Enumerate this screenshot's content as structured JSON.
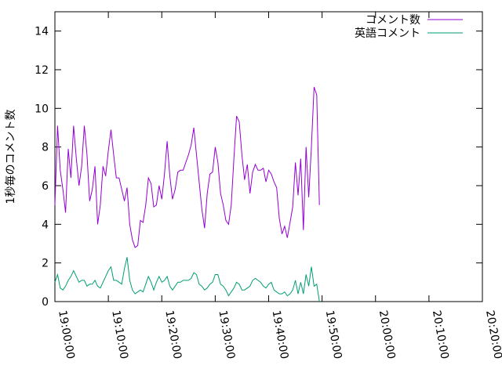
{
  "chart_data": {
    "type": "line",
    "title": "",
    "xlabel": "",
    "ylabel": "1秒毎のコメント数",
    "xlim": [
      "19:00:00",
      "20:20:00"
    ],
    "ylim": [
      0,
      15
    ],
    "x_ticks": [
      "19:00:00",
      "19:10:00",
      "19:20:00",
      "19:30:00",
      "19:40:00",
      "19:50:00",
      "20:00:00",
      "20:10:00",
      "20:20:00"
    ],
    "y_ticks": [
      "0",
      "2",
      "4",
      "6",
      "8",
      "10",
      "12",
      "14"
    ],
    "grid": false,
    "legend_position": "top-right",
    "series": [
      {
        "name": "コメント数",
        "color": "#9400d3",
        "points": [
          [
            "19:00:00",
            5.0
          ],
          [
            "19:00:30",
            9.1
          ],
          [
            "19:01:00",
            6.8
          ],
          [
            "19:01:30",
            5.8
          ],
          [
            "19:02:00",
            4.6
          ],
          [
            "19:02:30",
            7.9
          ],
          [
            "19:03:00",
            6.4
          ],
          [
            "19:03:30",
            9.1
          ],
          [
            "19:04:00",
            7.4
          ],
          [
            "19:04:30",
            6.0
          ],
          [
            "19:05:00",
            7.0
          ],
          [
            "19:05:30",
            9.1
          ],
          [
            "19:06:00",
            7.6
          ],
          [
            "19:06:30",
            5.2
          ],
          [
            "19:07:00",
            5.8
          ],
          [
            "19:07:30",
            7.0
          ],
          [
            "19:08:00",
            4.0
          ],
          [
            "19:08:30",
            5.0
          ],
          [
            "19:09:00",
            7.0
          ],
          [
            "19:09:30",
            6.5
          ],
          [
            "19:10:00",
            7.8
          ],
          [
            "19:10:30",
            8.9
          ],
          [
            "19:11:00",
            7.6
          ],
          [
            "19:11:30",
            6.4
          ],
          [
            "19:12:00",
            6.4
          ],
          [
            "19:12:30",
            5.8
          ],
          [
            "19:13:00",
            5.2
          ],
          [
            "19:13:30",
            5.9
          ],
          [
            "19:14:00",
            4.0
          ],
          [
            "19:14:30",
            3.2
          ],
          [
            "19:15:00",
            2.8
          ],
          [
            "19:15:30",
            2.9
          ],
          [
            "19:16:00",
            4.2
          ],
          [
            "19:16:30",
            4.1
          ],
          [
            "19:17:00",
            5.0
          ],
          [
            "19:17:30",
            6.4
          ],
          [
            "19:18:00",
            6.1
          ],
          [
            "19:18:30",
            4.9
          ],
          [
            "19:19:00",
            5.0
          ],
          [
            "19:19:30",
            6.0
          ],
          [
            "19:20:00",
            5.3
          ],
          [
            "19:20:30",
            6.6
          ],
          [
            "19:21:00",
            8.3
          ],
          [
            "19:21:30",
            6.5
          ],
          [
            "19:22:00",
            5.3
          ],
          [
            "19:22:30",
            5.8
          ],
          [
            "19:23:00",
            6.7
          ],
          [
            "19:23:30",
            6.8
          ],
          [
            "19:24:00",
            6.8
          ],
          [
            "19:24:30",
            7.2
          ],
          [
            "19:25:00",
            7.6
          ],
          [
            "19:25:30",
            8.1
          ],
          [
            "19:26:00",
            9.0
          ],
          [
            "19:26:30",
            7.6
          ],
          [
            "19:27:00",
            6.2
          ],
          [
            "19:27:30",
            4.8
          ],
          [
            "19:28:00",
            3.8
          ],
          [
            "19:28:30",
            5.6
          ],
          [
            "19:29:00",
            6.6
          ],
          [
            "19:29:30",
            6.7
          ],
          [
            "19:30:00",
            8.0
          ],
          [
            "19:30:30",
            7.2
          ],
          [
            "19:31:00",
            5.6
          ],
          [
            "19:31:30",
            5.0
          ],
          [
            "19:32:00",
            4.2
          ],
          [
            "19:32:30",
            4.0
          ],
          [
            "19:33:00",
            5.0
          ],
          [
            "19:33:30",
            7.4
          ],
          [
            "19:34:00",
            9.6
          ],
          [
            "19:34:30",
            9.3
          ],
          [
            "19:35:00",
            7.6
          ],
          [
            "19:35:30",
            6.3
          ],
          [
            "19:36:00",
            7.1
          ],
          [
            "19:36:30",
            5.6
          ],
          [
            "19:37:00",
            6.7
          ],
          [
            "19:37:30",
            7.1
          ],
          [
            "19:38:00",
            6.8
          ],
          [
            "19:38:30",
            6.8
          ],
          [
            "19:39:00",
            6.9
          ],
          [
            "19:39:30",
            6.2
          ],
          [
            "19:40:00",
            6.8
          ],
          [
            "19:40:30",
            6.6
          ],
          [
            "19:41:00",
            6.2
          ],
          [
            "19:41:30",
            5.9
          ],
          [
            "19:42:00",
            4.3
          ],
          [
            "19:42:30",
            3.5
          ],
          [
            "19:43:00",
            3.9
          ],
          [
            "19:43:30",
            3.3
          ],
          [
            "19:44:00",
            4.1
          ],
          [
            "19:44:30",
            4.9
          ],
          [
            "19:45:00",
            7.2
          ],
          [
            "19:45:30",
            5.5
          ],
          [
            "19:46:00",
            7.4
          ],
          [
            "19:46:30",
            3.7
          ],
          [
            "19:47:00",
            8.0
          ],
          [
            "19:47:30",
            5.4
          ],
          [
            "19:48:00",
            8.0
          ],
          [
            "19:48:30",
            11.1
          ],
          [
            "19:49:00",
            10.7
          ],
          [
            "19:49:30",
            5.0
          ]
        ]
      },
      {
        "name": "英語コメント",
        "color": "#009e73",
        "points": [
          [
            "19:00:00",
            1.0
          ],
          [
            "19:00:30",
            1.4
          ],
          [
            "19:01:00",
            0.7
          ],
          [
            "19:01:30",
            0.6
          ],
          [
            "19:02:00",
            0.8
          ],
          [
            "19:02:30",
            1.1
          ],
          [
            "19:03:00",
            1.3
          ],
          [
            "19:03:30",
            1.6
          ],
          [
            "19:04:00",
            1.3
          ],
          [
            "19:04:30",
            1.0
          ],
          [
            "19:05:00",
            1.1
          ],
          [
            "19:05:30",
            1.1
          ],
          [
            "19:06:00",
            0.8
          ],
          [
            "19:06:30",
            0.9
          ],
          [
            "19:07:00",
            0.9
          ],
          [
            "19:07:30",
            1.1
          ],
          [
            "19:08:00",
            0.8
          ],
          [
            "19:08:30",
            0.7
          ],
          [
            "19:09:00",
            1.0
          ],
          [
            "19:09:30",
            1.3
          ],
          [
            "19:10:00",
            1.6
          ],
          [
            "19:10:30",
            1.8
          ],
          [
            "19:11:00",
            1.1
          ],
          [
            "19:11:30",
            1.1
          ],
          [
            "19:12:00",
            1.0
          ],
          [
            "19:12:30",
            0.9
          ],
          [
            "19:13:00",
            1.7
          ],
          [
            "19:13:30",
            2.3
          ],
          [
            "19:14:00",
            1.1
          ],
          [
            "19:14:30",
            0.6
          ],
          [
            "19:15:00",
            0.4
          ],
          [
            "19:15:30",
            0.5
          ],
          [
            "19:16:00",
            0.6
          ],
          [
            "19:16:30",
            0.5
          ],
          [
            "19:17:00",
            0.9
          ],
          [
            "19:17:30",
            1.3
          ],
          [
            "19:18:00",
            1.0
          ],
          [
            "19:18:30",
            0.6
          ],
          [
            "19:19:00",
            1.0
          ],
          [
            "19:19:30",
            1.3
          ],
          [
            "19:20:00",
            1.0
          ],
          [
            "19:20:30",
            1.1
          ],
          [
            "19:21:00",
            1.3
          ],
          [
            "19:21:30",
            0.8
          ],
          [
            "19:22:00",
            0.6
          ],
          [
            "19:22:30",
            0.8
          ],
          [
            "19:23:00",
            1.0
          ],
          [
            "19:23:30",
            1.0
          ],
          [
            "19:24:00",
            1.1
          ],
          [
            "19:24:30",
            1.1
          ],
          [
            "19:25:00",
            1.1
          ],
          [
            "19:25:30",
            1.2
          ],
          [
            "19:26:00",
            1.5
          ],
          [
            "19:26:30",
            1.4
          ],
          [
            "19:27:00",
            0.9
          ],
          [
            "19:27:30",
            0.8
          ],
          [
            "19:28:00",
            0.6
          ],
          [
            "19:28:30",
            0.7
          ],
          [
            "19:29:00",
            0.9
          ],
          [
            "19:29:30",
            1.0
          ],
          [
            "19:30:00",
            1.4
          ],
          [
            "19:30:30",
            1.4
          ],
          [
            "19:31:00",
            0.9
          ],
          [
            "19:31:30",
            0.8
          ],
          [
            "19:32:00",
            0.6
          ],
          [
            "19:32:30",
            0.3
          ],
          [
            "19:33:00",
            0.5
          ],
          [
            "19:33:30",
            0.7
          ],
          [
            "19:34:00",
            1.0
          ],
          [
            "19:34:30",
            0.9
          ],
          [
            "19:35:00",
            0.6
          ],
          [
            "19:35:30",
            0.6
          ],
          [
            "19:36:00",
            0.7
          ],
          [
            "19:36:30",
            0.8
          ],
          [
            "19:37:00",
            1.1
          ],
          [
            "19:37:30",
            1.2
          ],
          [
            "19:38:00",
            1.1
          ],
          [
            "19:38:30",
            1.0
          ],
          [
            "19:39:00",
            0.8
          ],
          [
            "19:39:30",
            0.7
          ],
          [
            "19:40:00",
            0.9
          ],
          [
            "19:40:30",
            1.0
          ],
          [
            "19:41:00",
            0.6
          ],
          [
            "19:41:30",
            0.5
          ],
          [
            "19:42:00",
            0.4
          ],
          [
            "19:42:30",
            0.4
          ],
          [
            "19:43:00",
            0.5
          ],
          [
            "19:43:30",
            0.3
          ],
          [
            "19:44:00",
            0.4
          ],
          [
            "19:44:30",
            0.6
          ],
          [
            "19:45:00",
            1.1
          ],
          [
            "19:45:30",
            0.4
          ],
          [
            "19:46:00",
            1.0
          ],
          [
            "19:46:30",
            0.4
          ],
          [
            "19:47:00",
            1.4
          ],
          [
            "19:47:30",
            0.8
          ],
          [
            "19:48:00",
            1.8
          ],
          [
            "19:48:30",
            0.8
          ],
          [
            "19:49:00",
            0.9
          ],
          [
            "19:49:30",
            0.0
          ]
        ]
      }
    ]
  }
}
